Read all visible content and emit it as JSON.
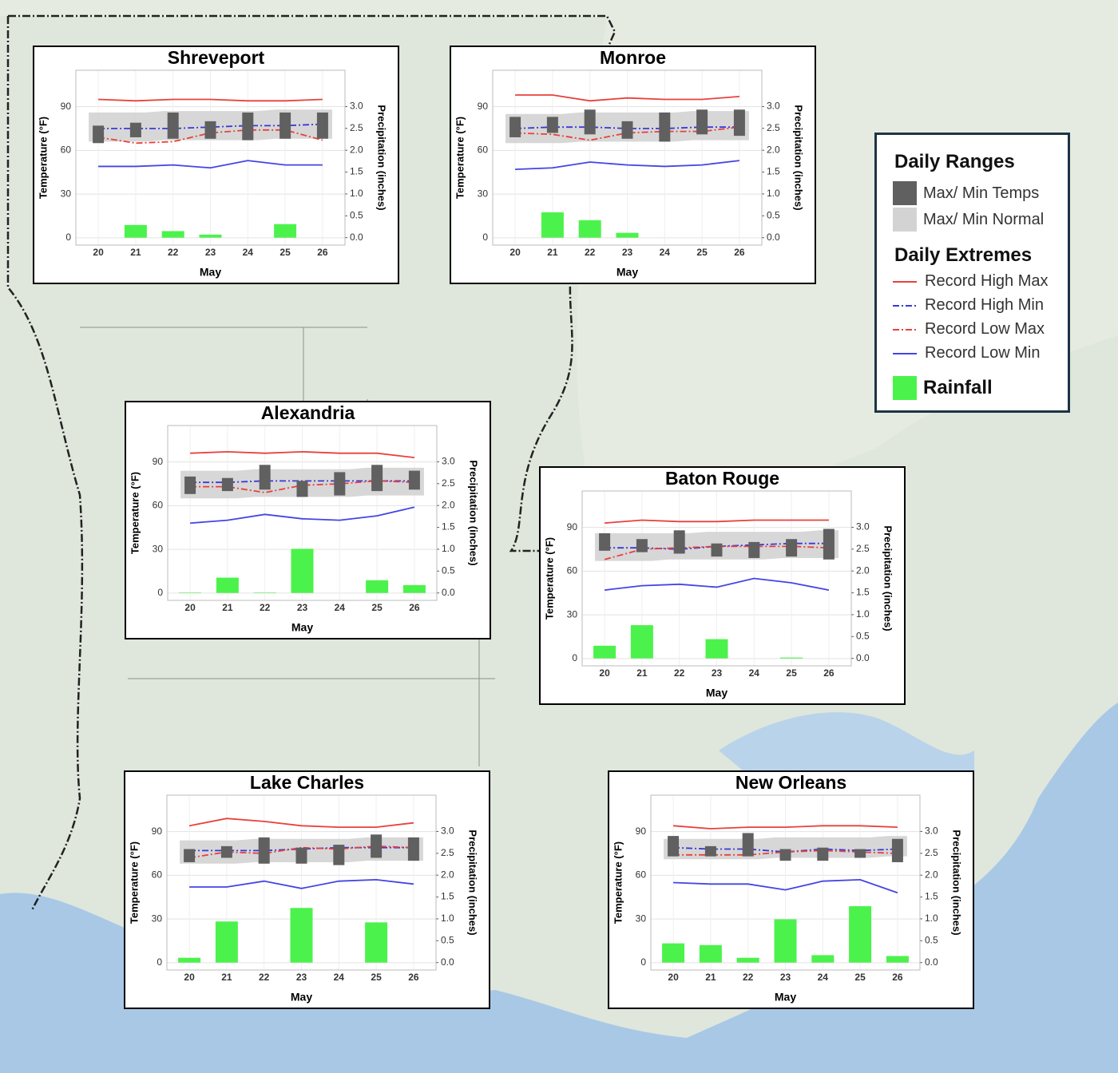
{
  "legend": {
    "titles": [
      "Daily Ranges",
      "Daily Extremes"
    ]
  },
  "chart_data": [
    {
      "type": "combo",
      "title": "Shreveport",
      "xlabel": "May",
      "ylabel": "Temperature (°F)",
      "y2label": "Precipitation (inches)",
      "categories": [
        "20",
        "21",
        "22",
        "23",
        "24",
        "25",
        "26"
      ],
      "ylim": [
        -5,
        115
      ],
      "yticks": [
        0,
        30,
        60,
        90
      ],
      "y2lim": [
        -0.17,
        3.83
      ],
      "y2ticks": [
        {
          "value": 0,
          "label": "0.0"
        },
        0.5,
        {
          "value": 1,
          "label": "1.0"
        },
        1.5,
        {
          "value": 2,
          "label": "2.0"
        },
        2.5,
        {
          "value": 3,
          "label": "3.0"
        }
      ],
      "grid": true,
      "series": [
        {
          "name": "Max/ Min Temps",
          "color": "#606060",
          "max": [
            77,
            79,
            86,
            80,
            86,
            86,
            86
          ],
          "min": [
            65,
            69,
            68,
            68,
            67,
            68,
            68
          ]
        },
        {
          "name": "Max/ Min Normal",
          "color": "#d3d3d3",
          "max": [
            86,
            86,
            87,
            87,
            87,
            88,
            88
          ],
          "min": [
            66,
            66,
            67,
            67,
            67,
            68,
            68
          ]
        },
        {
          "name": "Record High Max",
          "color": "#e8413c",
          "dash": "solid",
          "values": [
            95,
            94,
            95,
            95,
            94,
            94,
            95
          ]
        },
        {
          "name": "Record High Min",
          "color": "#3838d8",
          "dash": "dashdot",
          "values": [
            75,
            75,
            75,
            76,
            77,
            77,
            78
          ]
        },
        {
          "name": "Record Low Max",
          "color": "#e8413c",
          "dash": "dashdot",
          "values": [
            69,
            65,
            66,
            72,
            74,
            74,
            67
          ]
        },
        {
          "name": "Record Low Min",
          "color": "#4444e6",
          "dash": "solid",
          "values": [
            49,
            49,
            50,
            48,
            53,
            50,
            50
          ]
        },
        {
          "name": "Rainfall",
          "color": "#4cf24c",
          "axis": "y2",
          "values": [
            0,
            0.29,
            0.15,
            0.07,
            0,
            0.31,
            0
          ]
        }
      ]
    },
    {
      "type": "combo",
      "title": "Monroe",
      "xlabel": "May",
      "ylabel": "Temperature (°F)",
      "y2label": "Precipitation (inches)",
      "categories": [
        "20",
        "21",
        "22",
        "23",
        "24",
        "25",
        "26"
      ],
      "ylim": [
        -5,
        115
      ],
      "yticks": [
        0,
        30,
        60,
        90
      ],
      "y2lim": [
        -0.17,
        3.83
      ],
      "y2ticks": [
        {
          "value": 0,
          "label": "0.0"
        },
        0.5,
        {
          "value": 1,
          "label": "1.0"
        },
        1.5,
        {
          "value": 2,
          "label": "2.0"
        },
        2.5,
        {
          "value": 3,
          "label": "3.0"
        }
      ],
      "grid": true,
      "series": [
        {
          "name": "Max/ Min Temps",
          "color": "#606060",
          "max": [
            83,
            83,
            88,
            80,
            86,
            88,
            88
          ],
          "min": [
            69,
            72,
            71,
            68,
            66,
            71,
            70
          ]
        },
        {
          "name": "Max/ Min Normal",
          "color": "#d3d3d3",
          "max": [
            85,
            85,
            86,
            86,
            86,
            87,
            87
          ],
          "min": [
            65,
            65,
            66,
            66,
            66,
            67,
            67
          ]
        },
        {
          "name": "Record High Max",
          "color": "#e8413c",
          "dash": "solid",
          "values": [
            98,
            98,
            94,
            96,
            95,
            95,
            97
          ]
        },
        {
          "name": "Record High Min",
          "color": "#3838d8",
          "dash": "dashdot",
          "values": [
            75,
            76,
            76,
            75,
            75,
            76,
            76
          ]
        },
        {
          "name": "Record Low Max",
          "color": "#e8413c",
          "dash": "dashdot",
          "values": [
            72,
            71,
            67,
            72,
            73,
            73,
            76
          ]
        },
        {
          "name": "Record Low Min",
          "color": "#4444e6",
          "dash": "solid",
          "values": [
            47,
            48,
            52,
            50,
            49,
            50,
            53
          ]
        },
        {
          "name": "Rainfall",
          "color": "#4cf24c",
          "axis": "y2",
          "values": [
            0,
            0.58,
            0.4,
            0.11,
            0,
            0,
            0
          ]
        }
      ]
    },
    {
      "type": "combo",
      "title": "Alexandria",
      "xlabel": "May",
      "ylabel": "Temperature (°F)",
      "y2label": "Precipitation (inches)",
      "categories": [
        "20",
        "21",
        "22",
        "23",
        "24",
        "25",
        "26"
      ],
      "ylim": [
        -5,
        115
      ],
      "yticks": [
        0,
        30,
        60,
        90
      ],
      "y2lim": [
        -0.17,
        3.83
      ],
      "y2ticks": [
        {
          "value": 0,
          "label": "0.0"
        },
        0.5,
        {
          "value": 1,
          "label": "1.0"
        },
        1.5,
        {
          "value": 2,
          "label": "2.0"
        },
        2.5,
        {
          "value": 3,
          "label": "3.0"
        }
      ],
      "grid": true,
      "series": [
        {
          "name": "Max/ Min Temps",
          "color": "#606060",
          "max": [
            80,
            79,
            88,
            77,
            83,
            88,
            84
          ],
          "min": [
            68,
            70,
            71,
            66,
            67,
            70,
            71
          ]
        },
        {
          "name": "Max/ Min Normal",
          "color": "#d3d3d3",
          "max": [
            84,
            84,
            85,
            85,
            85,
            86,
            86
          ],
          "min": [
            65,
            65,
            66,
            66,
            66,
            67,
            67
          ]
        },
        {
          "name": "Record High Max",
          "color": "#e8413c",
          "dash": "solid",
          "values": [
            96,
            97,
            96,
            97,
            96,
            96,
            93
          ]
        },
        {
          "name": "Record High Min",
          "color": "#3838d8",
          "dash": "dashdot",
          "values": [
            76,
            76,
            77,
            77,
            77,
            77,
            77
          ]
        },
        {
          "name": "Record Low Max",
          "color": "#e8413c",
          "dash": "dashdot",
          "values": [
            73,
            73,
            69,
            74,
            75,
            77,
            76
          ]
        },
        {
          "name": "Record Low Min",
          "color": "#4444e6",
          "dash": "solid",
          "values": [
            48,
            50,
            54,
            51,
            50,
            53,
            59
          ]
        },
        {
          "name": "Rainfall",
          "color": "#4cf24c",
          "axis": "y2",
          "values": [
            0.01,
            0.35,
            0.01,
            1.01,
            0,
            0.29,
            0.18
          ]
        }
      ]
    },
    {
      "type": "combo",
      "title": "Baton Rouge",
      "xlabel": "May",
      "ylabel": "Temperature (°F)",
      "y2label": "Precipitation (inches)",
      "categories": [
        "20",
        "21",
        "22",
        "23",
        "24",
        "25",
        "26"
      ],
      "ylim": [
        -5,
        115
      ],
      "yticks": [
        0,
        30,
        60,
        90
      ],
      "y2lim": [
        -0.17,
        3.83
      ],
      "y2ticks": [
        {
          "value": 0,
          "label": "0.0"
        },
        0.5,
        {
          "value": 1,
          "label": "1.0"
        },
        1.5,
        {
          "value": 2,
          "label": "2.0"
        },
        2.5,
        {
          "value": 3,
          "label": "3.0"
        }
      ],
      "grid": true,
      "series": [
        {
          "name": "Max/ Min Temps",
          "color": "#606060",
          "max": [
            86,
            82,
            88,
            79,
            80,
            82,
            89
          ],
          "min": [
            74,
            73,
            72,
            70,
            69,
            70,
            68
          ]
        },
        {
          "name": "Max/ Min Normal",
          "color": "#d3d3d3",
          "max": [
            86,
            86,
            86,
            87,
            87,
            87,
            88
          ],
          "min": [
            67,
            67,
            68,
            68,
            68,
            69,
            69
          ]
        },
        {
          "name": "Record High Max",
          "color": "#e8413c",
          "dash": "solid",
          "values": [
            93,
            95,
            94,
            94,
            95,
            95,
            95
          ]
        },
        {
          "name": "Record High Min",
          "color": "#3838d8",
          "dash": "dashdot",
          "values": [
            76,
            76,
            75,
            77,
            78,
            79,
            79
          ]
        },
        {
          "name": "Record Low Max",
          "color": "#e8413c",
          "dash": "dashdot",
          "values": [
            68,
            75,
            76,
            77,
            77,
            77,
            76
          ]
        },
        {
          "name": "Record Low Min",
          "color": "#4444e6",
          "dash": "solid",
          "values": [
            47,
            50,
            51,
            49,
            55,
            52,
            47
          ]
        },
        {
          "name": "Rainfall",
          "color": "#4cf24c",
          "axis": "y2",
          "values": [
            0.29,
            0.76,
            0,
            0.44,
            0,
            0.02,
            0
          ]
        }
      ]
    },
    {
      "type": "combo",
      "title": "Lake Charles",
      "xlabel": "May",
      "ylabel": "Temperature (°F)",
      "y2label": "Precipitation (inches)",
      "categories": [
        "20",
        "21",
        "22",
        "23",
        "24",
        "25",
        "26"
      ],
      "ylim": [
        -5,
        115
      ],
      "yticks": [
        0,
        30,
        60,
        90
      ],
      "y2lim": [
        -0.17,
        3.83
      ],
      "y2ticks": [
        {
          "value": 0,
          "label": "0.0"
        },
        0.5,
        {
          "value": 1,
          "label": "1.0"
        },
        1.5,
        {
          "value": 2,
          "label": "2.0"
        },
        2.5,
        {
          "value": 3,
          "label": "3.0"
        }
      ],
      "grid": true,
      "series": [
        {
          "name": "Max/ Min Temps",
          "color": "#606060",
          "max": [
            78,
            80,
            86,
            79,
            81,
            88,
            86
          ],
          "min": [
            69,
            72,
            68,
            68,
            67,
            72,
            70
          ]
        },
        {
          "name": "Max/ Min Normal",
          "color": "#d3d3d3",
          "max": [
            84,
            84,
            85,
            85,
            85,
            86,
            86
          ],
          "min": [
            68,
            68,
            69,
            69,
            69,
            70,
            70
          ]
        },
        {
          "name": "Record High Max",
          "color": "#e8413c",
          "dash": "solid",
          "values": [
            94,
            99,
            97,
            94,
            93,
            93,
            96
          ]
        },
        {
          "name": "Record High Min",
          "color": "#3838d8",
          "dash": "dashdot",
          "values": [
            77,
            77,
            77,
            78,
            79,
            79,
            79
          ]
        },
        {
          "name": "Record Low Max",
          "color": "#e8413c",
          "dash": "dashdot",
          "values": [
            72,
            76,
            75,
            79,
            78,
            80,
            79
          ]
        },
        {
          "name": "Record Low Min",
          "color": "#4444e6",
          "dash": "solid",
          "values": [
            52,
            52,
            56,
            51,
            56,
            57,
            54
          ]
        },
        {
          "name": "Rainfall",
          "color": "#4cf24c",
          "axis": "y2",
          "values": [
            0.11,
            0.94,
            0,
            1.25,
            0,
            0.92,
            0
          ]
        }
      ]
    },
    {
      "type": "combo",
      "title": "New Orleans",
      "xlabel": "May",
      "ylabel": "Temperature (°F)",
      "y2label": "Precipitation (inches)",
      "categories": [
        "20",
        "21",
        "22",
        "23",
        "24",
        "25",
        "26"
      ],
      "ylim": [
        -5,
        115
      ],
      "yticks": [
        0,
        30,
        60,
        90
      ],
      "y2lim": [
        -0.17,
        3.83
      ],
      "y2ticks": [
        {
          "value": 0,
          "label": "0.0"
        },
        0.5,
        {
          "value": 1,
          "label": "1.0"
        },
        1.5,
        {
          "value": 2,
          "label": "2.0"
        },
        2.5,
        {
          "value": 3,
          "label": "3.0"
        }
      ],
      "grid": true,
      "series": [
        {
          "name": "Max/ Min Temps",
          "color": "#606060",
          "max": [
            87,
            80,
            89,
            78,
            79,
            78,
            85
          ],
          "min": [
            73,
            73,
            73,
            70,
            70,
            72,
            69
          ]
        },
        {
          "name": "Max/ Min Normal",
          "color": "#d3d3d3",
          "max": [
            85,
            85,
            85,
            86,
            86,
            86,
            87
          ],
          "min": [
            71,
            71,
            71,
            72,
            72,
            72,
            73
          ]
        },
        {
          "name": "Record High Max",
          "color": "#e8413c",
          "dash": "solid",
          "values": [
            94,
            92,
            93,
            93,
            94,
            94,
            93
          ]
        },
        {
          "name": "Record High Min",
          "color": "#3838d8",
          "dash": "dashdot",
          "values": [
            79,
            78,
            78,
            76,
            78,
            77,
            78
          ]
        },
        {
          "name": "Record Low Max",
          "color": "#e8413c",
          "dash": "dashdot",
          "values": [
            74,
            74,
            74,
            76,
            77,
            76,
            75
          ]
        },
        {
          "name": "Record Low Min",
          "color": "#4444e6",
          "dash": "solid",
          "values": [
            55,
            54,
            54,
            50,
            56,
            57,
            48
          ]
        },
        {
          "name": "Rainfall",
          "color": "#4cf24c",
          "axis": "y2",
          "values": [
            0.44,
            0.4,
            0.11,
            0.99,
            0.17,
            1.29,
            0.15
          ]
        }
      ]
    }
  ]
}
